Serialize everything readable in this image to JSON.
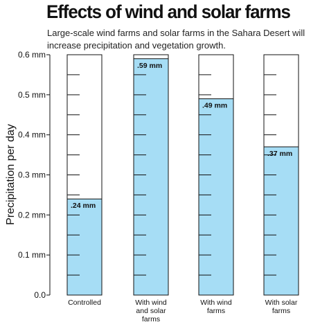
{
  "title": "Effects of wind and solar farms",
  "subtitle": "Large-scale wind farms and solar farms in the Sahara Desert will increase precipitation and vegetation growth.",
  "colors": {
    "fill": "#a6ddf5",
    "outline": "#111111",
    "text": "#111111"
  },
  "chart_data": {
    "type": "bar",
    "title": "Effects of wind and solar farms",
    "subtitle": "Large-scale wind farms and solar farms in the Sahara Desert will increase precipitation and vegetation growth.",
    "xlabel": "",
    "ylabel": "Precipitation per day",
    "ylim": [
      0,
      0.6
    ],
    "yticks": [
      0.0,
      0.1,
      0.2,
      0.3,
      0.4,
      0.5,
      0.6
    ],
    "ytick_labels": [
      "0.0",
      "0.1 mm",
      "0.2 mm",
      "0.3 mm",
      "0.4 mm",
      "0.5 mm",
      "0.6 mm"
    ],
    "categories": [
      [
        "Controlled"
      ],
      [
        "With wind",
        "and solar",
        "farms"
      ],
      [
        "With wind",
        "farms"
      ],
      [
        "With solar",
        "farms"
      ]
    ],
    "values": [
      0.24,
      0.59,
      0.49,
      0.37
    ],
    "value_labels": [
      ".24 mm",
      ".59 mm",
      ".49 mm",
      ".37 mm"
    ],
    "grid": false,
    "legend": "none"
  }
}
